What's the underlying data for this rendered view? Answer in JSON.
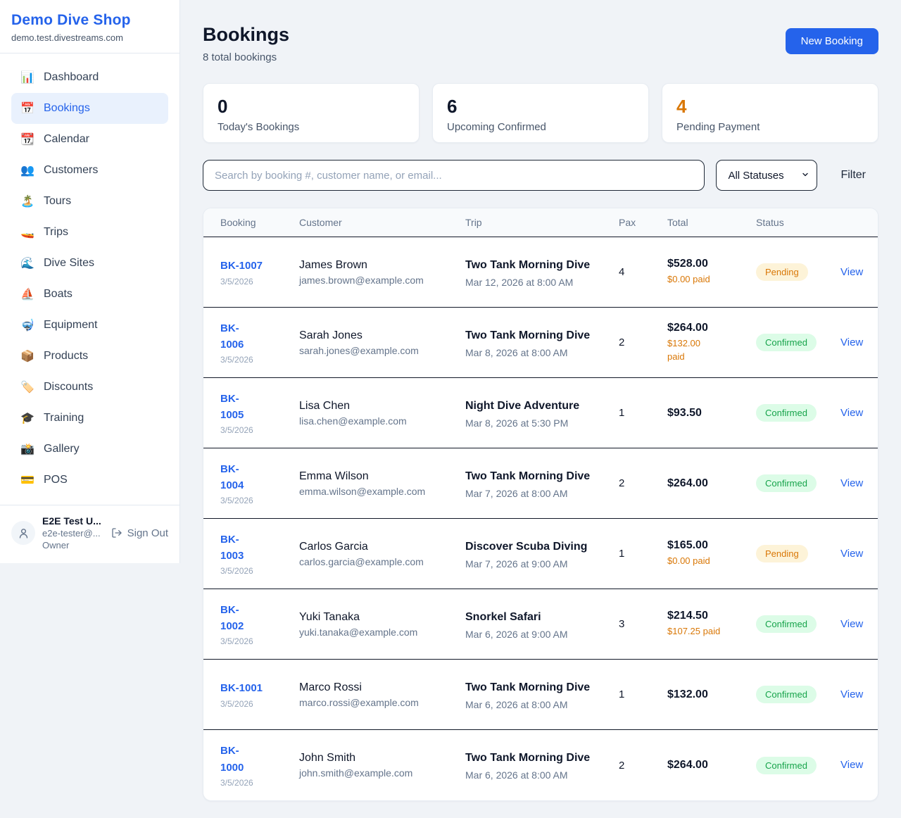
{
  "sidebar": {
    "brand": {
      "name": "Demo Dive Shop",
      "domain": "demo.test.divestreams.com"
    },
    "nav": [
      {
        "label": "Dashboard",
        "icon": "bar-chart-icon",
        "glyph": "📊",
        "active": false
      },
      {
        "label": "Bookings",
        "icon": "calendar-icon",
        "glyph": "📅",
        "active": true
      },
      {
        "label": "Calendar",
        "icon": "tear-calendar-icon",
        "glyph": "📆",
        "active": false
      },
      {
        "label": "Customers",
        "icon": "people-icon",
        "glyph": "👥",
        "active": false
      },
      {
        "label": "Tours",
        "icon": "island-icon",
        "glyph": "🏝️",
        "active": false
      },
      {
        "label": "Trips",
        "icon": "speedboat-icon",
        "glyph": "🚤",
        "active": false
      },
      {
        "label": "Dive Sites",
        "icon": "wave-icon",
        "glyph": "🌊",
        "active": false
      },
      {
        "label": "Boats",
        "icon": "sailboat-icon",
        "glyph": "⛵",
        "active": false
      },
      {
        "label": "Equipment",
        "icon": "diving-mask-icon",
        "glyph": "🤿",
        "active": false
      },
      {
        "label": "Products",
        "icon": "package-icon",
        "glyph": "📦",
        "active": false
      },
      {
        "label": "Discounts",
        "icon": "tag-icon",
        "glyph": "🏷️",
        "active": false
      },
      {
        "label": "Training",
        "icon": "graduation-cap-icon",
        "glyph": "🎓",
        "active": false
      },
      {
        "label": "Gallery",
        "icon": "camera-icon",
        "glyph": "📸",
        "active": false
      },
      {
        "label": "POS",
        "icon": "credit-card-icon",
        "glyph": "💳",
        "active": false
      }
    ],
    "user": {
      "name": "E2E Test U...",
      "email": "e2e-tester@...",
      "role": "Owner",
      "sign_out_label": "Sign Out"
    }
  },
  "header": {
    "title": "Bookings",
    "subtitle": "8 total bookings",
    "new_booking_label": "New Booking"
  },
  "stats": [
    {
      "value": "0",
      "label": "Today's Bookings",
      "accent": false
    },
    {
      "value": "6",
      "label": "Upcoming Confirmed",
      "accent": false
    },
    {
      "value": "4",
      "label": "Pending Payment",
      "accent": true
    }
  ],
  "filters": {
    "search_placeholder": "Search by booking #, customer name, or email...",
    "status_selected": "All Statuses",
    "filter_label": "Filter"
  },
  "table": {
    "columns": [
      "Booking",
      "Customer",
      "Trip",
      "Pax",
      "Total",
      "Status"
    ],
    "view_label": "View",
    "rows": [
      {
        "id": "BK-1007",
        "date": "3/5/2026",
        "customer": "James Brown",
        "email": "james.brown@example.com",
        "trip": "Two Tank Morning Dive",
        "trip_datetime": "Mar 12, 2026 at 8:00 AM",
        "pax": "4",
        "total": "$528.00",
        "paid": "$0.00 paid",
        "status": "Pending"
      },
      {
        "id": [
          "BK-",
          "1006"
        ],
        "date": "3/5/2026",
        "customer": "Sarah Jones",
        "email": "sarah.jones@example.com",
        "trip": "Two Tank Morning Dive",
        "trip_datetime": "Mar 8, 2026 at 8:00 AM",
        "pax": "2",
        "total": "$264.00",
        "paid": [
          "$132.00",
          "paid"
        ],
        "status": "Confirmed"
      },
      {
        "id": [
          "BK-",
          "1005"
        ],
        "date": "3/5/2026",
        "customer": "Lisa Chen",
        "email": "lisa.chen@example.com",
        "trip": "Night Dive Adventure",
        "trip_datetime": "Mar 8, 2026 at 5:30 PM",
        "pax": "1",
        "total": "$93.50",
        "paid": null,
        "status": "Confirmed"
      },
      {
        "id": [
          "BK-",
          "1004"
        ],
        "date": "3/5/2026",
        "customer": "Emma Wilson",
        "email": "emma.wilson@example.com",
        "trip": "Two Tank Morning Dive",
        "trip_datetime": "Mar 7, 2026 at 8:00 AM",
        "pax": "2",
        "total": "$264.00",
        "paid": null,
        "status": "Confirmed"
      },
      {
        "id": [
          "BK-",
          "1003"
        ],
        "date": "3/5/2026",
        "customer": "Carlos Garcia",
        "email": "carlos.garcia@example.com",
        "trip": "Discover Scuba Diving",
        "trip_datetime": "Mar 7, 2026 at 9:00 AM",
        "pax": "1",
        "total": "$165.00",
        "paid": "$0.00 paid",
        "status": "Pending"
      },
      {
        "id": [
          "BK-",
          "1002"
        ],
        "date": "3/5/2026",
        "customer": "Yuki Tanaka",
        "email": "yuki.tanaka@example.com",
        "trip": "Snorkel Safari",
        "trip_datetime": "Mar 6, 2026 at 9:00 AM",
        "pax": "3",
        "total": "$214.50",
        "paid": "$107.25 paid",
        "status": "Confirmed"
      },
      {
        "id": "BK-1001",
        "date": "3/5/2026",
        "customer": "Marco Rossi",
        "email": "marco.rossi@example.com",
        "trip": "Two Tank Morning Dive",
        "trip_datetime": "Mar 6, 2026 at 8:00 AM",
        "pax": "1",
        "total": "$132.00",
        "paid": null,
        "status": "Confirmed"
      },
      {
        "id": [
          "BK-",
          "1000"
        ],
        "date": "3/5/2026",
        "customer": "John Smith",
        "email": "john.smith@example.com",
        "trip": "Two Tank Morning Dive",
        "trip_datetime": "Mar 6, 2026 at 8:00 AM",
        "pax": "2",
        "total": "$264.00",
        "paid": null,
        "status": "Confirmed"
      }
    ]
  },
  "colors": {
    "brand_blue": "#2563eb",
    "accent_orange": "#d97706",
    "confirmed_green": "#16a34a",
    "confirmed_bg": "#dcfce7",
    "pending_bg": "#fdf3d8",
    "page_bg": "#f0f3f7"
  }
}
